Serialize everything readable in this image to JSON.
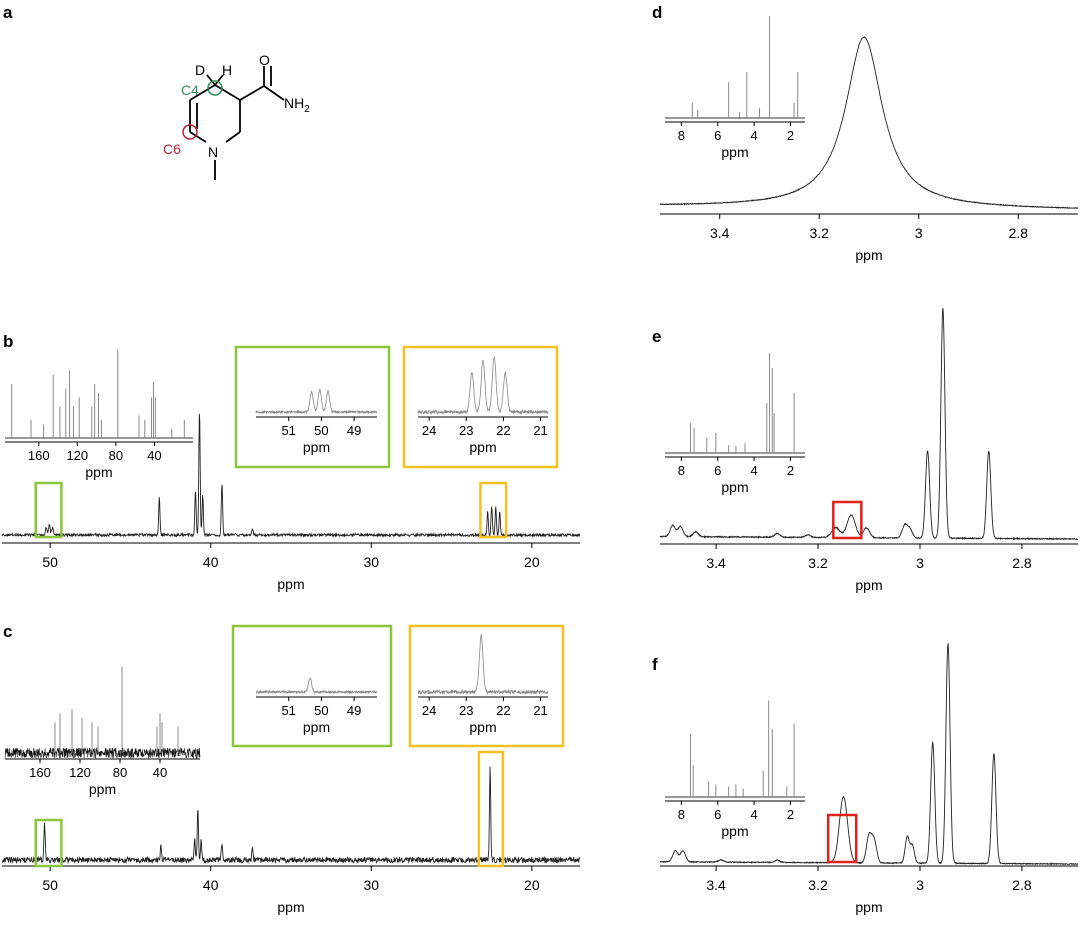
{
  "panel_labels": [
    "a",
    "b",
    "c",
    "d",
    "e",
    "f"
  ],
  "molecule": {
    "atoms": {
      "D": "D",
      "H": "H",
      "O": "O",
      "NH": "NH",
      "sub2": "2",
      "N": "N"
    },
    "markers": [
      {
        "label": "C4",
        "color": "#2e8b57"
      },
      {
        "label": "C6",
        "color": "#b22234"
      }
    ]
  },
  "colors": {
    "green_box": "#8cc63f",
    "yellow_box": "#f5c021",
    "red_box": "#e0201b",
    "trace": "#222222",
    "inset_trace": "#888888"
  },
  "chart_data": [
    {
      "id": "b",
      "type": "line",
      "xlabel": "ppm",
      "xlim": [
        53,
        17
      ],
      "reversed": true,
      "ticks": [
        50,
        40,
        30,
        20
      ],
      "peaks": [
        {
          "x": 50.25,
          "h": 0.06,
          "w": 0.05
        },
        {
          "x": 50.05,
          "h": 0.08,
          "w": 0.05
        },
        {
          "x": 49.85,
          "h": 0.06,
          "w": 0.05
        },
        {
          "x": 43.2,
          "h": 0.3,
          "w": 0.04
        },
        {
          "x": 40.95,
          "h": 0.35,
          "w": 0.04
        },
        {
          "x": 40.7,
          "h": 0.95,
          "w": 0.04
        },
        {
          "x": 40.5,
          "h": 0.3,
          "w": 0.04
        },
        {
          "x": 39.3,
          "h": 0.4,
          "w": 0.04
        },
        {
          "x": 37.4,
          "h": 0.05,
          "w": 0.04
        },
        {
          "x": 22.75,
          "h": 0.18,
          "w": 0.04
        },
        {
          "x": 22.5,
          "h": 0.22,
          "w": 0.04
        },
        {
          "x": 22.25,
          "h": 0.22,
          "w": 0.04
        },
        {
          "x": 22.0,
          "h": 0.18,
          "w": 0.04
        }
      ],
      "boxes": [
        {
          "from": 50.9,
          "to": 49.3,
          "color": "green"
        },
        {
          "from": 23.2,
          "to": 21.6,
          "color": "yellow"
        }
      ],
      "insets": [
        {
          "kind": "full13c",
          "ticks": [
            160,
            120,
            80,
            40
          ],
          "xlabel": "ppm",
          "xlim": [
            195,
            0
          ],
          "peaks": [
            {
              "x": 188,
              "h": 0.6
            },
            {
              "x": 168,
              "h": 0.2
            },
            {
              "x": 155,
              "h": 0.15
            },
            {
              "x": 145,
              "h": 0.7
            },
            {
              "x": 138,
              "h": 0.35
            },
            {
              "x": 132,
              "h": 0.55
            },
            {
              "x": 128,
              "h": 0.75
            },
            {
              "x": 124,
              "h": 0.35
            },
            {
              "x": 118,
              "h": 0.45
            },
            {
              "x": 105,
              "h": 0.35
            },
            {
              "x": 102,
              "h": 0.6
            },
            {
              "x": 98,
              "h": 0.5
            },
            {
              "x": 95,
              "h": 0.2
            },
            {
              "x": 78,
              "h": 0.98
            },
            {
              "x": 56,
              "h": 0.25
            },
            {
              "x": 50,
              "h": 0.2
            },
            {
              "x": 43,
              "h": 0.45
            },
            {
              "x": 41,
              "h": 0.62
            },
            {
              "x": 39,
              "h": 0.45
            },
            {
              "x": 22,
              "h": 0.1
            },
            {
              "x": 9,
              "h": 0.2
            }
          ]
        },
        {
          "kind": "zoom",
          "box": "green",
          "xlim": [
            52,
            48.3
          ],
          "ticks": [
            51,
            50,
            49
          ],
          "xlabel": "ppm",
          "peaks": [
            {
              "x": 50.3,
              "h": 0.45
            },
            {
              "x": 50.05,
              "h": 0.5
            },
            {
              "x": 49.8,
              "h": 0.45
            }
          ]
        },
        {
          "kind": "zoom",
          "box": "yellow",
          "xlim": [
            24.3,
            20.8
          ],
          "ticks": [
            24,
            23,
            22,
            21
          ],
          "xlabel": "ppm",
          "peaks": [
            {
              "x": 22.85,
              "h": 0.6
            },
            {
              "x": 22.55,
              "h": 0.8
            },
            {
              "x": 22.25,
              "h": 0.85
            },
            {
              "x": 21.95,
              "h": 0.6
            }
          ]
        }
      ]
    },
    {
      "id": "c",
      "type": "line",
      "xlabel": "ppm",
      "xlim": [
        53,
        17
      ],
      "reversed": true,
      "ticks": [
        50,
        40,
        30,
        20
      ],
      "peaks": [
        {
          "x": 50.35,
          "h": 0.22,
          "w": 0.04
        },
        {
          "x": 43.1,
          "h": 0.08,
          "w": 0.04
        },
        {
          "x": 41.0,
          "h": 0.12,
          "w": 0.04
        },
        {
          "x": 40.8,
          "h": 0.3,
          "w": 0.04
        },
        {
          "x": 40.6,
          "h": 0.12,
          "w": 0.04
        },
        {
          "x": 39.3,
          "h": 0.1,
          "w": 0.04
        },
        {
          "x": 37.4,
          "h": 0.07,
          "w": 0.04
        },
        {
          "x": 22.6,
          "h": 0.55,
          "w": 0.04
        }
      ],
      "boxes": [
        {
          "from": 50.9,
          "to": 49.3,
          "color": "green"
        },
        {
          "from": 23.3,
          "to": 21.8,
          "color": "yellow"
        }
      ],
      "insets": [
        {
          "kind": "full13c",
          "ticks": [
            160,
            120,
            80,
            40
          ],
          "xlabel": "ppm",
          "xlim": [
            195,
            0
          ],
          "peaks": [
            {
              "x": 145,
              "h": 0.35
            },
            {
              "x": 140,
              "h": 0.45
            },
            {
              "x": 128,
              "h": 0.5
            },
            {
              "x": 118,
              "h": 0.4
            },
            {
              "x": 108,
              "h": 0.35
            },
            {
              "x": 102,
              "h": 0.3
            },
            {
              "x": 78,
              "h": 0.98
            },
            {
              "x": 43,
              "h": 0.3
            },
            {
              "x": 40,
              "h": 0.45
            },
            {
              "x": 38,
              "h": 0.35
            },
            {
              "x": 22,
              "h": 0.3
            }
          ]
        },
        {
          "kind": "zoom",
          "box": "green",
          "xlim": [
            52,
            48.3
          ],
          "ticks": [
            51,
            50,
            49
          ],
          "xlabel": "ppm",
          "peaks": [
            {
              "x": 50.35,
              "h": 0.3
            }
          ]
        },
        {
          "kind": "zoom",
          "box": "yellow",
          "xlim": [
            24.3,
            20.8
          ],
          "ticks": [
            24,
            23,
            22,
            21
          ],
          "xlabel": "ppm",
          "peaks": [
            {
              "x": 22.6,
              "h": 0.8
            }
          ]
        }
      ]
    },
    {
      "id": "d",
      "type": "line",
      "xlabel": "ppm",
      "xlim": [
        3.52,
        2.68
      ],
      "reversed": true,
      "ticks": [
        3.4,
        3.2,
        3.0,
        2.8
      ],
      "peaks": [
        {
          "x": 3.11,
          "h": 0.95,
          "w": 0.045,
          "shape": "lorentz"
        }
      ],
      "insets": [
        {
          "kind": "full1h",
          "ticks": [
            8,
            6,
            4,
            2
          ],
          "xlabel": "ppm",
          "xlim": [
            8.9,
            1.2
          ],
          "peaks": [
            {
              "x": 7.4,
              "h": 0.15
            },
            {
              "x": 7.1,
              "h": 0.08
            },
            {
              "x": 5.4,
              "h": 0.35
            },
            {
              "x": 4.8,
              "h": 0.06
            },
            {
              "x": 4.4,
              "h": 0.45
            },
            {
              "x": 3.7,
              "h": 0.1
            },
            {
              "x": 3.15,
              "h": 1.0
            },
            {
              "x": 1.8,
              "h": 0.15
            },
            {
              "x": 1.6,
              "h": 0.45
            }
          ]
        }
      ]
    },
    {
      "id": "e",
      "type": "line",
      "xlabel": "ppm",
      "xlim": [
        3.51,
        2.69
      ],
      "reversed": true,
      "ticks": [
        3.4,
        3.2,
        3.0,
        2.8
      ],
      "peaks": [
        {
          "x": 3.485,
          "h": 0.045,
          "w": 0.005
        },
        {
          "x": 3.47,
          "h": 0.04,
          "w": 0.005
        },
        {
          "x": 3.44,
          "h": 0.02,
          "w": 0.005
        },
        {
          "x": 3.28,
          "h": 0.015,
          "w": 0.005
        },
        {
          "x": 3.22,
          "h": 0.01,
          "w": 0.005
        },
        {
          "x": 3.165,
          "h": 0.04,
          "w": 0.008
        },
        {
          "x": 3.135,
          "h": 0.09,
          "w": 0.008
        },
        {
          "x": 3.105,
          "h": 0.04,
          "w": 0.006
        },
        {
          "x": 3.03,
          "h": 0.05,
          "w": 0.005
        },
        {
          "x": 3.02,
          "h": 0.035,
          "w": 0.005
        },
        {
          "x": 2.985,
          "h": 0.35,
          "w": 0.004
        },
        {
          "x": 2.955,
          "h": 0.92,
          "w": 0.004
        },
        {
          "x": 2.865,
          "h": 0.35,
          "w": 0.004
        }
      ],
      "boxes": [
        {
          "from": 3.17,
          "to": 3.115,
          "color": "red"
        }
      ],
      "insets": [
        {
          "kind": "full1h",
          "ticks": [
            8,
            6,
            4,
            2
          ],
          "xlabel": "ppm",
          "xlim": [
            8.9,
            1.2
          ],
          "peaks": [
            {
              "x": 7.5,
              "h": 0.3
            },
            {
              "x": 7.3,
              "h": 0.25
            },
            {
              "x": 6.6,
              "h": 0.15
            },
            {
              "x": 6.1,
              "h": 0.2
            },
            {
              "x": 5.4,
              "h": 0.08
            },
            {
              "x": 5.0,
              "h": 0.07
            },
            {
              "x": 4.5,
              "h": 0.1
            },
            {
              "x": 3.3,
              "h": 0.5
            },
            {
              "x": 3.15,
              "h": 1.0
            },
            {
              "x": 3.0,
              "h": 0.85
            },
            {
              "x": 2.9,
              "h": 0.4
            },
            {
              "x": 1.8,
              "h": 0.6
            }
          ]
        }
      ]
    },
    {
      "id": "f",
      "type": "line",
      "xlabel": "ppm",
      "xlim": [
        3.51,
        2.69
      ],
      "reversed": true,
      "ticks": [
        3.4,
        3.2,
        3.0,
        2.8
      ],
      "peaks": [
        {
          "x": 3.48,
          "h": 0.05,
          "w": 0.005
        },
        {
          "x": 3.465,
          "h": 0.05,
          "w": 0.005
        },
        {
          "x": 3.39,
          "h": 0.01,
          "w": 0.005
        },
        {
          "x": 3.28,
          "h": 0.01,
          "w": 0.005
        },
        {
          "x": 3.15,
          "h": 0.3,
          "w": 0.008
        },
        {
          "x": 3.1,
          "h": 0.12,
          "w": 0.005
        },
        {
          "x": 3.09,
          "h": 0.1,
          "w": 0.005
        },
        {
          "x": 3.025,
          "h": 0.12,
          "w": 0.004
        },
        {
          "x": 3.015,
          "h": 0.08,
          "w": 0.004
        },
        {
          "x": 2.975,
          "h": 0.55,
          "w": 0.004
        },
        {
          "x": 2.945,
          "h": 1.0,
          "w": 0.004
        },
        {
          "x": 2.855,
          "h": 0.5,
          "w": 0.004
        }
      ],
      "boxes": [
        {
          "from": 3.18,
          "to": 3.125,
          "color": "red"
        }
      ],
      "insets": [
        {
          "kind": "full1h",
          "ticks": [
            8,
            6,
            4,
            2
          ],
          "xlabel": "ppm",
          "xlim": [
            8.9,
            1.2
          ],
          "peaks": [
            {
              "x": 7.5,
              "h": 0.6
            },
            {
              "x": 7.35,
              "h": 0.3
            },
            {
              "x": 6.5,
              "h": 0.15
            },
            {
              "x": 6.1,
              "h": 0.12
            },
            {
              "x": 5.4,
              "h": 0.1
            },
            {
              "x": 5.0,
              "h": 0.12
            },
            {
              "x": 4.6,
              "h": 0.08
            },
            {
              "x": 3.5,
              "h": 0.25
            },
            {
              "x": 3.2,
              "h": 0.92
            },
            {
              "x": 3.0,
              "h": 0.65
            },
            {
              "x": 2.2,
              "h": 0.1
            },
            {
              "x": 1.8,
              "h": 0.7
            }
          ]
        }
      ]
    }
  ]
}
